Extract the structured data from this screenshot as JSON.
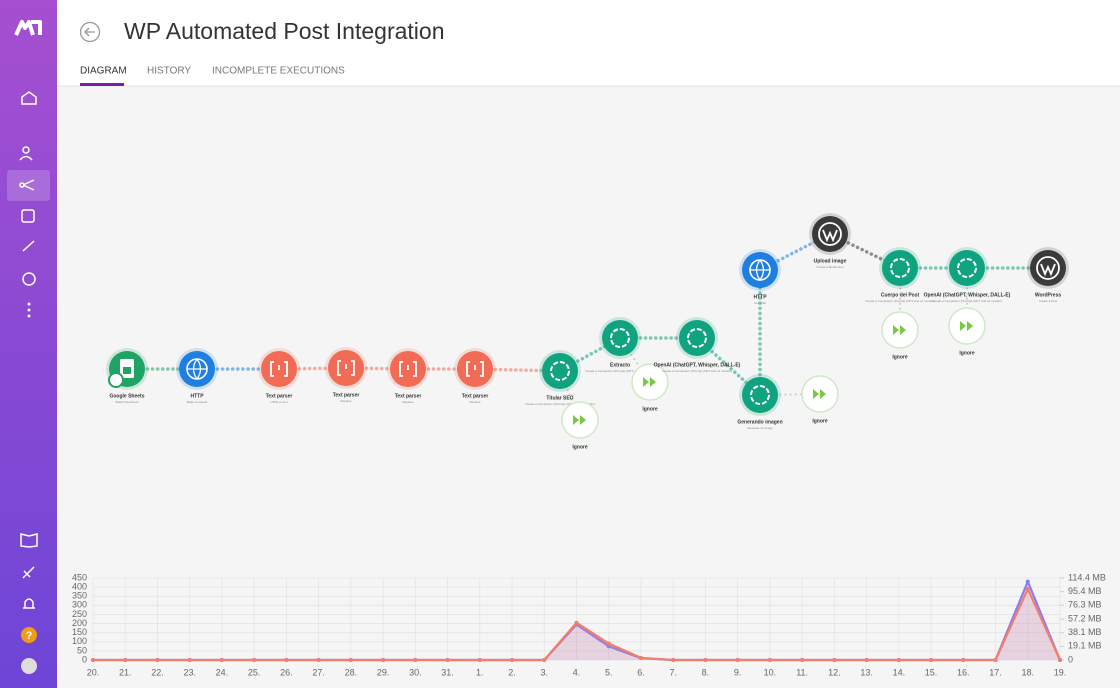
{
  "header": {
    "title": "WP Automated Post Integration"
  },
  "tabs": [
    "DIAGRAM",
    "HISTORY",
    "INCOMPLETE EXECUTIONS"
  ],
  "sidebar": {
    "help": "?"
  },
  "nodes": [
    {
      "label": "Google Sheets",
      "sublabel": "Watch New Rows"
    },
    {
      "label": "HTTP",
      "sublabel": "Make a request"
    },
    {
      "label": "Text parser",
      "sublabel": "HTML to text"
    },
    {
      "label": "Text parser",
      "sublabel": "Replace"
    },
    {
      "label": "Text parser",
      "sublabel": "Replace"
    },
    {
      "label": "Text parser",
      "sublabel": "Replace"
    },
    {
      "label": "Titular SEO",
      "sublabel": "Create a Completion (Prompt) (GPT and o1 models)"
    },
    {
      "label": "Ignore"
    },
    {
      "label": "Extracto",
      "sublabel": "Create a Completion (Prompt) (GPT and o1 models)"
    },
    {
      "label": "Ignore"
    },
    {
      "label": "OpenAI (ChatGPT, Whisper, DALL-E)",
      "sublabel": "Create a Completion (Prompt) (GPT and o1 models)"
    },
    {
      "label": "Generando imagen",
      "sublabel": "Generate an Image"
    },
    {
      "label": "Ignore"
    },
    {
      "label": "HTTP",
      "sublabel": "Get a file"
    },
    {
      "label": "Upload image",
      "sublabel": "Create a Media Item"
    },
    {
      "label": "Cuerpo del Post",
      "sublabel": "Create a Completion (Prompt) (GPT and o1 models)"
    },
    {
      "label": "OpenAI (ChatGPT, Whisper, DALL-E)",
      "sublabel": "Create a Completion (Prompt) (GPT and o1 models)"
    },
    {
      "label": "WordPress",
      "sublabel": "Create a Post"
    },
    {
      "label": "Ignore"
    },
    {
      "label": "Ignore"
    }
  ],
  "chart_data": {
    "type": "line",
    "x": [
      "20.",
      "21.",
      "22.",
      "23.",
      "24.",
      "25.",
      "26.",
      "27.",
      "28.",
      "29.",
      "30.",
      "31.",
      "1.",
      "2.",
      "3.",
      "4.",
      "5.",
      "6.",
      "7.",
      "8.",
      "9.",
      "10.",
      "11.",
      "12.",
      "13.",
      "14.",
      "15.",
      "16.",
      "17.",
      "18.",
      "19."
    ],
    "series": [
      {
        "color": "#8b7cf6",
        "values": [
          0,
          0,
          0,
          0,
          0,
          0,
          0,
          0,
          0,
          0,
          0,
          0,
          0,
          0,
          0,
          195,
          75,
          10,
          0,
          0,
          0,
          0,
          0,
          0,
          0,
          0,
          0,
          0,
          0,
          430,
          0
        ]
      },
      {
        "color": "#f0806a",
        "axis": "y2",
        "values": [
          0,
          0,
          0,
          0,
          0,
          0,
          0,
          0,
          0,
          0,
          0,
          0,
          0,
          0,
          0,
          52,
          23,
          3,
          0,
          0,
          0,
          0,
          0,
          0,
          0,
          0,
          0,
          0,
          0,
          99,
          0
        ]
      }
    ],
    "ylim": [
      0,
      450
    ],
    "yticks": [
      0,
      50,
      100,
      150,
      200,
      250,
      300,
      350,
      400,
      450
    ],
    "y2lim": [
      0,
      114.4
    ],
    "y2ticks": [
      0,
      {
        "value": 19.1,
        "label": "19.1 MB"
      },
      {
        "value": 38.1,
        "label": "38.1 MB"
      },
      {
        "value": 57.2,
        "label": "57.2 MB"
      },
      {
        "value": 76.3,
        "label": "76.3 MB"
      },
      {
        "value": 95.4,
        "label": "95.4 MB"
      },
      {
        "value": 114.4,
        "label": "114.4 MB"
      }
    ],
    "grid": true
  }
}
